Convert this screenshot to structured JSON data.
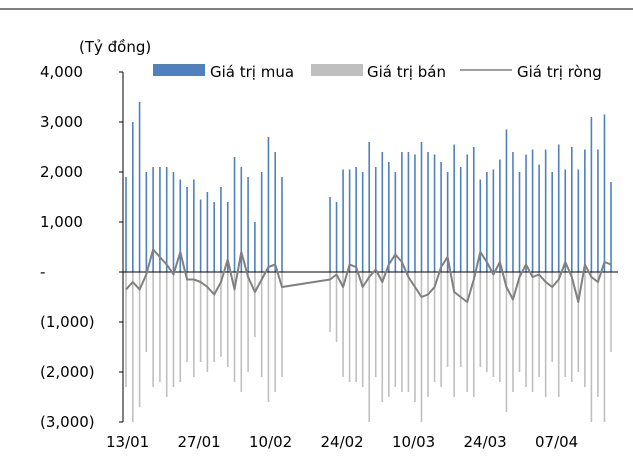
{
  "chart_data": {
    "type": "bar",
    "unit_label": "(Tỷ đồng)",
    "title": "",
    "xlabel": "",
    "ylabel": "",
    "ylim": [
      -3000,
      4000
    ],
    "y_ticks": [
      4000,
      3000,
      2000,
      1000,
      0,
      -1000,
      -2000,
      -3000
    ],
    "y_tick_labels": [
      "4,000",
      "3,000",
      "2,000",
      "1,000",
      "-",
      "(1,000)",
      "(2,000)",
      "(3,000)"
    ],
    "x_tick_labels": [
      "13/01",
      "27/01",
      "10/02",
      "24/02",
      "10/03",
      "24/03",
      "07/04"
    ],
    "legend": [
      {
        "name": "Giá trị mua",
        "color": "#4f81bd",
        "kind": "bar"
      },
      {
        "name": "Giá trị bán",
        "color": "#bfbfbf",
        "kind": "bar"
      },
      {
        "name": "Giá trị ròng",
        "color": "#808080",
        "kind": "line"
      }
    ],
    "series": [
      {
        "name": "Giá trị mua",
        "values": [
          1900,
          3000,
          3400,
          2000,
          2100,
          2100,
          2100,
          2000,
          1850,
          1700,
          1850,
          1450,
          1600,
          1400,
          1700,
          1400,
          2300,
          2100,
          1900,
          1000,
          2000,
          2700,
          2400,
          1900,
          1500,
          1400,
          2050,
          2050,
          2100,
          2000,
          2600,
          2100,
          2400,
          2200,
          2000,
          2400,
          2400,
          2350,
          2600,
          2400,
          2350,
          2200,
          2000,
          2550,
          2100,
          2350,
          2500,
          1850,
          2000,
          2050,
          2250,
          2850,
          2400,
          2000,
          2350,
          2450,
          2150,
          2450,
          2000,
          2550,
          2050,
          2500,
          2050,
          2450,
          3100,
          2450,
          3150,
          1800
        ]
      },
      {
        "name": "Giá trị bán",
        "values": [
          -2300,
          -3000,
          -2700,
          -1600,
          -2300,
          -2200,
          -2500,
          -2300,
          -2200,
          -1800,
          -2100,
          -1800,
          -2000,
          -1800,
          -1700,
          -1900,
          -2200,
          -2400,
          -2000,
          -1300,
          -2100,
          -2600,
          -2400,
          -2100,
          -1200,
          -1400,
          -2100,
          -2200,
          -2200,
          -2300,
          -3000,
          -2100,
          -2600,
          -2500,
          -2300,
          -2400,
          -2400,
          -2600,
          -3000,
          -2500,
          -2200,
          -2300,
          -1900,
          -2500,
          -1900,
          -2400,
          -2500,
          -1900,
          -2000,
          -2100,
          -2200,
          -2800,
          -2400,
          -2000,
          -2300,
          -2400,
          -2100,
          -2500,
          -1800,
          -2500,
          -2100,
          -2200,
          -2000,
          -2300,
          -3000,
          -2500,
          -3000,
          -1600
        ]
      },
      {
        "name": "Giá trị ròng",
        "values": [
          -350,
          -200,
          -350,
          -50,
          450,
          300,
          150,
          -50,
          400,
          -150,
          -150,
          -200,
          -300,
          -450,
          -200,
          250,
          -350,
          400,
          -100,
          -400,
          -150,
          100,
          150,
          -300,
          -150,
          -50,
          -300,
          150,
          100,
          -300,
          -100,
          50,
          -200,
          150,
          350,
          200,
          -100,
          -300,
          -500,
          -450,
          -300,
          100,
          300,
          -400,
          -500,
          -600,
          -150,
          400,
          200,
          -50,
          200,
          -300,
          -550,
          -100,
          150,
          -100,
          -50,
          -200,
          -300,
          -150,
          200,
          -100,
          -600,
          150,
          -100,
          -200,
          200,
          150
        ]
      }
    ]
  }
}
